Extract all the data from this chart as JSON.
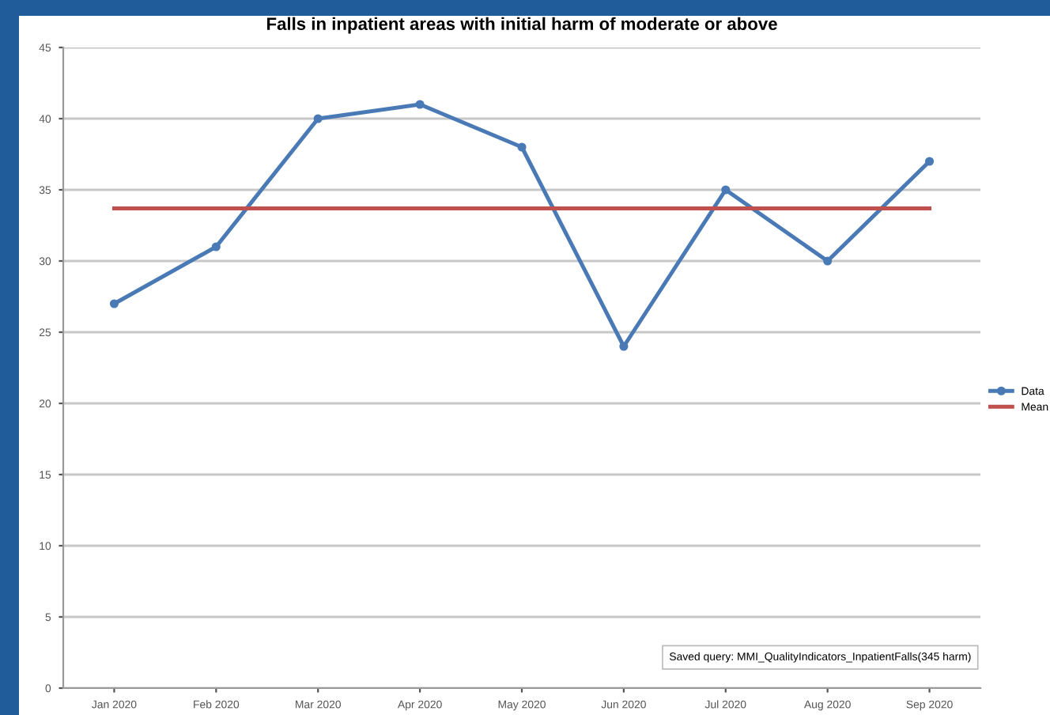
{
  "chart_data": {
    "type": "line",
    "title": "Falls in inpatient areas with initial harm of moderate or above",
    "categories": [
      "Jan 2020",
      "Feb 2020",
      "Mar 2020",
      "Apr 2020",
      "May 2020",
      "Jun 2020",
      "Jul 2020",
      "Aug 2020",
      "Sep 2020"
    ],
    "series": [
      {
        "name": "Data",
        "color": "#4a7ab5",
        "marker": "circle",
        "values": [
          27,
          31,
          40,
          41,
          38,
          24,
          35,
          30,
          37
        ]
      },
      {
        "name": "Mean",
        "color": "#c0504d",
        "marker": "none",
        "values": [
          33.7,
          33.7,
          33.7,
          33.7,
          33.7,
          33.7,
          33.7,
          33.7,
          33.7
        ]
      }
    ],
    "ylim": [
      0,
      45
    ],
    "yticks": [
      0,
      5,
      10,
      15,
      20,
      25,
      30,
      35,
      40,
      45
    ],
    "grid": "y",
    "legend": "right",
    "annotations": [
      "Saved query: MMI_QualityIndicators_InpatientFalls(345 harm)"
    ]
  }
}
